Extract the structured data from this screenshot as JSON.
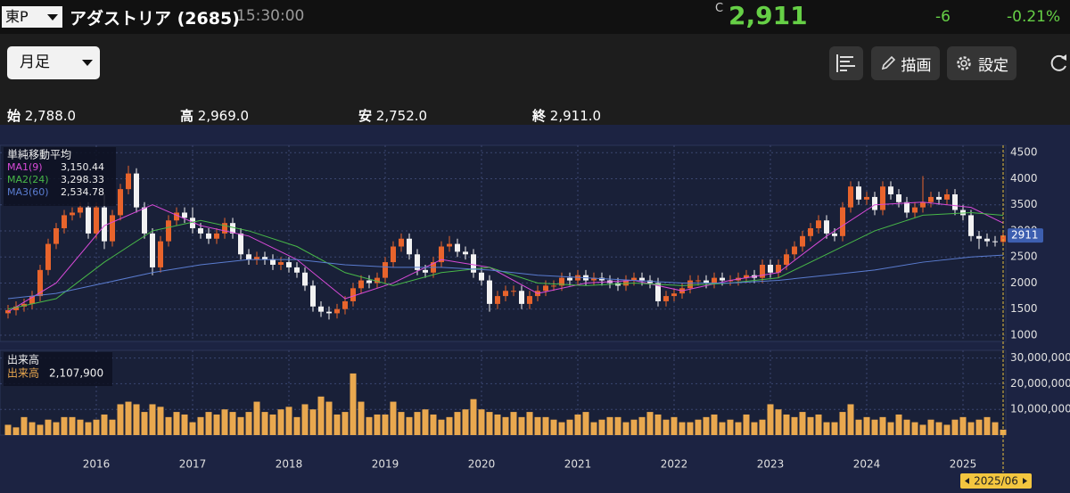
{
  "header": {
    "market": "東P",
    "name": "アダストリア (2685)",
    "time": "15:30:00",
    "price_flag": "C",
    "price": "2,911",
    "change": "-6",
    "change_pct": "-0.21%"
  },
  "toolbar": {
    "period": "月足",
    "draw": "描画",
    "settings": "設定"
  },
  "ohlc": [
    {
      "label": "始",
      "value": "2,788.0"
    },
    {
      "label": "高",
      "value": "2,969.0"
    },
    {
      "label": "安",
      "value": "2,752.0"
    },
    {
      "label": "終",
      "value": "2,911.0"
    }
  ],
  "chart_data": [
    {
      "type": "candlestick",
      "title": "単純移動平均",
      "up_color": "#e8642c",
      "down_color": "#f2f2f2",
      "ylim": [
        880,
        4640
      ],
      "yticks": [
        1000,
        1500,
        2000,
        2500,
        3000,
        3500,
        4000,
        4500
      ],
      "grid": true,
      "open": [
        1420,
        1480,
        1550,
        1600,
        1750,
        2250,
        2750,
        3050,
        3300,
        3350,
        3450,
        2950,
        3450,
        2800,
        3300,
        3800,
        4100,
        3450,
        2950,
        2300,
        2800,
        3200,
        3350,
        3250,
        3050,
        2950,
        2850,
        2950,
        3150,
        2950,
        2550,
        2450,
        2500,
        2450,
        2350,
        2400,
        2300,
        2200,
        1950,
        1550,
        1450,
        1420,
        1500,
        1650,
        1900,
        2050,
        2000,
        2100,
        2400,
        2700,
        2850,
        2550,
        2250,
        2200,
        2400,
        2700,
        2750,
        2600,
        2550,
        2200,
        2050,
        1600,
        1750,
        1850,
        1850,
        1600,
        1750,
        1850,
        1950,
        1950,
        2100,
        2050,
        2150,
        2050,
        2100,
        2050,
        2000,
        1950,
        2050,
        2100,
        2050,
        2000,
        1650,
        1750,
        1800,
        1900,
        2050,
        2050,
        2000,
        2100,
        2050,
        2050,
        2100,
        2150,
        2100,
        2350,
        2200,
        2350,
        2550,
        2700,
        2900,
        3050,
        3200,
        2950,
        2900,
        3450,
        3850,
        3600,
        3650,
        3400,
        3850,
        3700,
        3550,
        3350,
        3450,
        3550,
        3650,
        3600,
        3700,
        3400,
        3300,
        2900,
        2850,
        2800,
        2788
      ],
      "high": [
        1580,
        1650,
        1700,
        1850,
        2350,
        2850,
        3150,
        3400,
        3450,
        3550,
        3550,
        3550,
        3700,
        3400,
        3900,
        4250,
        4200,
        3550,
        3050,
        2900,
        3300,
        3450,
        3450,
        3450,
        3150,
        3050,
        3050,
        3250,
        3250,
        3050,
        2650,
        2600,
        2600,
        2550,
        2500,
        2500,
        2400,
        2300,
        2050,
        1650,
        1550,
        1600,
        1750,
        2000,
        2150,
        2150,
        2200,
        2500,
        2800,
        2950,
        2950,
        2650,
        2350,
        2500,
        2800,
        2900,
        2850,
        2700,
        2650,
        2300,
        2150,
        1850,
        1950,
        1950,
        1950,
        1850,
        1950,
        2050,
        2050,
        2200,
        2200,
        2250,
        2250,
        2200,
        2200,
        2150,
        2100,
        2150,
        2200,
        2200,
        2150,
        2100,
        1850,
        1900,
        2000,
        2150,
        2150,
        2150,
        2200,
        2200,
        2150,
        2200,
        2250,
        2250,
        2450,
        2450,
        2450,
        2650,
        2800,
        3000,
        3150,
        3300,
        3300,
        3050,
        3550,
        3950,
        3950,
        3750,
        3750,
        3950,
        3950,
        3800,
        3650,
        3550,
        4050,
        3750,
        3750,
        3800,
        3800,
        3500,
        3400,
        3000,
        2950,
        2900,
        2969
      ],
      "low": [
        1320,
        1380,
        1450,
        1500,
        1650,
        2150,
        2650,
        2950,
        3200,
        3250,
        2850,
        2850,
        2650,
        2700,
        3200,
        3700,
        3350,
        2850,
        2150,
        2200,
        2700,
        3100,
        3150,
        2950,
        2850,
        2750,
        2750,
        2850,
        2850,
        2450,
        2350,
        2350,
        2350,
        2250,
        2250,
        2200,
        2100,
        1850,
        1450,
        1350,
        1300,
        1320,
        1400,
        1550,
        1800,
        1900,
        1900,
        2000,
        2300,
        2600,
        2450,
        2150,
        2100,
        2100,
        2300,
        2600,
        2500,
        2450,
        2100,
        1950,
        1450,
        1500,
        1650,
        1750,
        1500,
        1500,
        1650,
        1750,
        1850,
        1850,
        1950,
        1950,
        1950,
        1950,
        1950,
        1900,
        1850,
        1850,
        1950,
        1950,
        1900,
        1550,
        1550,
        1650,
        1700,
        1800,
        1950,
        1900,
        1900,
        1950,
        1950,
        1950,
        2000,
        2000,
        2000,
        2100,
        2100,
        2250,
        2450,
        2600,
        2800,
        2950,
        2850,
        2800,
        2800,
        3350,
        3500,
        3500,
        3300,
        3300,
        3600,
        3450,
        3250,
        3250,
        3350,
        3450,
        3500,
        3500,
        3300,
        3200,
        2800,
        2650,
        2700,
        2700,
        2752
      ],
      "close": [
        1480,
        1550,
        1600,
        1750,
        2250,
        2750,
        3050,
        3300,
        3350,
        3450,
        2950,
        3450,
        2800,
        3300,
        3800,
        4100,
        3450,
        2950,
        2300,
        2800,
        3200,
        3350,
        3250,
        3050,
        2950,
        2850,
        2950,
        3150,
        2950,
        2550,
        2450,
        2500,
        2450,
        2350,
        2400,
        2300,
        2200,
        1950,
        1550,
        1450,
        1420,
        1500,
        1650,
        1900,
        2050,
        2000,
        2100,
        2400,
        2700,
        2850,
        2550,
        2250,
        2200,
        2400,
        2700,
        2750,
        2600,
        2550,
        2200,
        2050,
        1600,
        1750,
        1850,
        1850,
        1600,
        1750,
        1850,
        1950,
        1950,
        2100,
        2050,
        2150,
        2050,
        2100,
        2050,
        2000,
        1950,
        2050,
        2100,
        2050,
        2000,
        1650,
        1750,
        1800,
        1900,
        2050,
        2050,
        2000,
        2100,
        2050,
        2050,
        2100,
        2150,
        2100,
        2350,
        2200,
        2350,
        2550,
        2700,
        2900,
        3050,
        3200,
        2950,
        2900,
        3450,
        3850,
        3600,
        3650,
        3400,
        3850,
        3700,
        3550,
        3350,
        3450,
        3550,
        3650,
        3600,
        3700,
        3400,
        3300,
        2900,
        2850,
        2800,
        2788,
        2911
      ],
      "series": [
        {
          "name": "MA1(9)",
          "color": "#d84ad8",
          "x": [
            0,
            6,
            12,
            18,
            24,
            30,
            36,
            42,
            48,
            54,
            60,
            66,
            72,
            78,
            84,
            90,
            96,
            102,
            108,
            114,
            120,
            124
          ],
          "values": [
            1450,
            2000,
            3100,
            3500,
            3100,
            2900,
            2450,
            1700,
            2000,
            2450,
            2300,
            1800,
            2000,
            2050,
            1850,
            2050,
            2200,
            2900,
            3500,
            3550,
            3450,
            3150.44
          ],
          "value_labels": [
            null,
            null,
            null,
            null,
            null,
            null,
            null,
            null,
            null,
            null,
            null,
            null,
            null,
            null,
            null,
            null,
            null,
            null,
            null,
            null,
            null,
            "3,150.44"
          ]
        },
        {
          "name": "MA2(24)",
          "color": "#48b848",
          "x": [
            0,
            6,
            12,
            18,
            24,
            30,
            36,
            42,
            48,
            54,
            60,
            66,
            72,
            78,
            84,
            90,
            96,
            102,
            108,
            114,
            120,
            124
          ],
          "values": [
            1500,
            1700,
            2400,
            3000,
            3200,
            3000,
            2700,
            2200,
            1950,
            2200,
            2300,
            2000,
            1950,
            2000,
            1950,
            2000,
            2100,
            2550,
            3000,
            3300,
            3350,
            3298.33
          ],
          "value_labels": [
            null,
            null,
            null,
            null,
            null,
            null,
            null,
            null,
            null,
            null,
            null,
            null,
            null,
            null,
            null,
            null,
            null,
            null,
            null,
            null,
            null,
            "3,298.33"
          ]
        },
        {
          "name": "MA3(60)",
          "color": "#5a7cd0",
          "x": [
            0,
            6,
            12,
            18,
            24,
            30,
            36,
            42,
            48,
            54,
            60,
            66,
            72,
            78,
            84,
            90,
            96,
            102,
            108,
            114,
            120,
            124
          ],
          "values": [
            1700,
            1800,
            2000,
            2200,
            2350,
            2450,
            2450,
            2350,
            2300,
            2300,
            2250,
            2150,
            2100,
            2050,
            2000,
            2000,
            2050,
            2150,
            2250,
            2400,
            2500,
            2534.78
          ],
          "value_labels": [
            null,
            null,
            null,
            null,
            null,
            null,
            null,
            null,
            null,
            null,
            null,
            null,
            null,
            null,
            null,
            null,
            null,
            null,
            null,
            null,
            null,
            "2,534.78"
          ]
        }
      ]
    },
    {
      "type": "bar",
      "title": "出来高",
      "categories": [
        null,
        null,
        null,
        null,
        null,
        null,
        null,
        null,
        null,
        null,
        null,
        null,
        null,
        null,
        null,
        null,
        null,
        null,
        null,
        null,
        null,
        null,
        null,
        null,
        null,
        null,
        null,
        null,
        null,
        null,
        null,
        null,
        null,
        null,
        null,
        null,
        null,
        null,
        null,
        null,
        null,
        null,
        null,
        null,
        null,
        null,
        null,
        null,
        null,
        null,
        null,
        null,
        null,
        null,
        null,
        null,
        null,
        null,
        null,
        null,
        null,
        null,
        null,
        null,
        null,
        null,
        null,
        null,
        null,
        null,
        null,
        null,
        null,
        null,
        null,
        null,
        null,
        null,
        null,
        null,
        null,
        null,
        null,
        null,
        null,
        null,
        null,
        null,
        null,
        null,
        null,
        null,
        null,
        null,
        null,
        null,
        null,
        null,
        null,
        null,
        null,
        null,
        null,
        null,
        null,
        null,
        null,
        null,
        null,
        null,
        null,
        null,
        null,
        null,
        null,
        null,
        null,
        null,
        null,
        null,
        null,
        null,
        null,
        null,
        "2025/06"
      ],
      "xticks": [
        {
          "value": 11,
          "label": "2016"
        },
        {
          "value": 23,
          "label": "2017"
        },
        {
          "value": 35,
          "label": "2018"
        },
        {
          "value": 47,
          "label": "2019"
        },
        {
          "value": 59,
          "label": "2020"
        },
        {
          "value": 71,
          "label": "2021"
        },
        {
          "value": 83,
          "label": "2022"
        },
        {
          "value": 95,
          "label": "2023"
        },
        {
          "value": 107,
          "label": "2024"
        },
        {
          "value": 119,
          "label": "2025"
        }
      ],
      "ylim": [
        0,
        33000000
      ],
      "yticks": [
        {
          "value": 10000000,
          "label": "10,000,000"
        },
        {
          "value": 20000000,
          "label": "20,000,000"
        },
        {
          "value": 30000000,
          "label": "30,000,000"
        }
      ],
      "grid": true,
      "series": [
        {
          "name": "出来高",
          "color": "#e9a84f",
          "values": [
            4000000,
            3000000,
            7000000,
            5000000,
            4000000,
            6000000,
            5000000,
            7000000,
            7000000,
            6000000,
            5000000,
            6000000,
            8000000,
            6000000,
            12000000,
            13000000,
            12000000,
            9000000,
            12000000,
            11000000,
            7000000,
            9000000,
            8000000,
            5000000,
            7000000,
            9000000,
            8000000,
            10000000,
            9000000,
            7000000,
            9000000,
            13000000,
            9000000,
            8000000,
            10000000,
            11000000,
            7000000,
            12000000,
            10000000,
            15000000,
            13000000,
            8000000,
            9000000,
            24000000,
            13000000,
            7000000,
            8000000,
            8000000,
            13000000,
            9000000,
            7000000,
            9000000,
            10000000,
            8000000,
            6000000,
            7000000,
            9000000,
            10000000,
            14000000,
            10000000,
            9000000,
            8000000,
            7000000,
            9000000,
            7000000,
            9000000,
            7000000,
            7000000,
            6000000,
            5000000,
            6000000,
            8000000,
            9000000,
            5000000,
            6000000,
            7000000,
            7000000,
            5000000,
            6000000,
            7000000,
            9000000,
            8000000,
            6000000,
            7000000,
            5000000,
            5000000,
            6000000,
            7000000,
            8000000,
            5000000,
            6000000,
            5000000,
            8000000,
            5000000,
            6000000,
            12000000,
            10000000,
            8000000,
            7000000,
            9000000,
            7000000,
            8000000,
            5000000,
            5000000,
            9000000,
            12000000,
            6000000,
            7000000,
            6000000,
            7000000,
            5000000,
            8000000,
            6000000,
            5000000,
            4000000,
            6000000,
            5000000,
            4000000,
            6000000,
            7000000,
            5000000,
            6000000,
            7000000,
            5000000,
            2107900
          ],
          "value_labels": [
            null,
            null,
            null,
            null,
            null,
            null,
            null,
            null,
            null,
            null,
            null,
            null,
            null,
            null,
            null,
            null,
            null,
            null,
            null,
            null,
            null,
            null,
            null,
            null,
            null,
            null,
            null,
            null,
            null,
            null,
            null,
            null,
            null,
            null,
            null,
            null,
            null,
            null,
            null,
            null,
            null,
            null,
            null,
            null,
            null,
            null,
            null,
            null,
            null,
            null,
            null,
            null,
            null,
            null,
            null,
            null,
            null,
            null,
            null,
            null,
            null,
            null,
            null,
            null,
            null,
            null,
            null,
            null,
            null,
            null,
            null,
            null,
            null,
            null,
            null,
            null,
            null,
            null,
            null,
            null,
            null,
            null,
            null,
            null,
            null,
            null,
            null,
            null,
            null,
            null,
            null,
            null,
            null,
            null,
            null,
            null,
            null,
            null,
            null,
            null,
            null,
            null,
            null,
            null,
            null,
            null,
            null,
            null,
            null,
            null,
            null,
            null,
            null,
            null,
            null,
            null,
            null,
            null,
            null,
            null,
            null,
            null,
            null,
            null,
            "2,107,900"
          ]
        }
      ]
    }
  ]
}
